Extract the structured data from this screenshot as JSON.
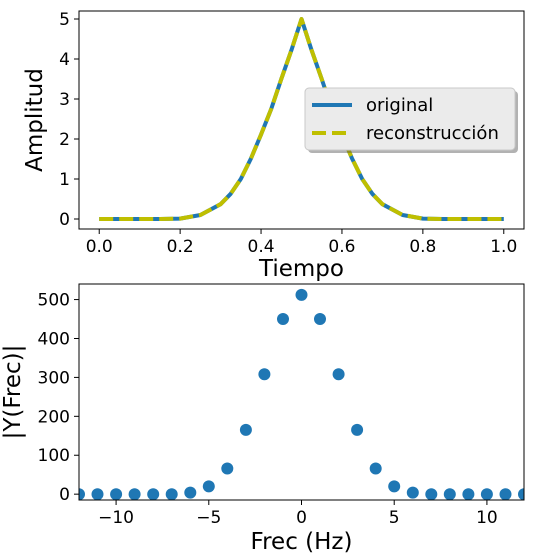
{
  "chart_data": [
    {
      "type": "line",
      "xlabel": "Tiempo",
      "ylabel": "Amplitud",
      "xlim": [
        -0.05,
        1.05
      ],
      "ylim": [
        -0.25,
        5.2
      ],
      "xticks": [
        0.0,
        0.2,
        0.4,
        0.6,
        0.8,
        1.0
      ],
      "xtick_labels": [
        "0.0",
        "0.2",
        "0.4",
        "0.6",
        "0.8",
        "1.0"
      ],
      "yticks": [
        0,
        1,
        2,
        3,
        4,
        5
      ],
      "ytick_labels": [
        "0",
        "1",
        "2",
        "3",
        "4",
        "5"
      ],
      "legend_position": "right",
      "series": [
        {
          "name": "original",
          "color": "#1f77b4",
          "style": "solid",
          "x": [
            0.0,
            0.05,
            0.1,
            0.15,
            0.2,
            0.25,
            0.3,
            0.325,
            0.35,
            0.375,
            0.4,
            0.425,
            0.45,
            0.475,
            0.5,
            0.525,
            0.55,
            0.575,
            0.6,
            0.625,
            0.65,
            0.675,
            0.7,
            0.75,
            0.8,
            0.85,
            0.9,
            0.95,
            1.0
          ],
          "y": [
            0.0,
            0.0,
            0.0,
            0.0,
            0.01,
            0.1,
            0.37,
            0.63,
            1.0,
            1.51,
            2.11,
            2.75,
            3.5,
            4.22,
            5.0,
            4.22,
            3.5,
            2.75,
            2.11,
            1.51,
            1.0,
            0.63,
            0.37,
            0.1,
            0.01,
            0.0,
            0.0,
            0.0,
            0.0
          ]
        },
        {
          "name": "reconstrucción",
          "color": "#bfbf00",
          "style": "dashed",
          "x": [
            0.0,
            0.05,
            0.1,
            0.15,
            0.2,
            0.25,
            0.3,
            0.325,
            0.35,
            0.375,
            0.4,
            0.425,
            0.45,
            0.475,
            0.5,
            0.525,
            0.55,
            0.575,
            0.6,
            0.625,
            0.65,
            0.675,
            0.7,
            0.75,
            0.8,
            0.85,
            0.9,
            0.95,
            1.0
          ],
          "y": [
            0.0,
            0.0,
            0.0,
            0.0,
            0.01,
            0.1,
            0.37,
            0.63,
            1.0,
            1.51,
            2.11,
            2.75,
            3.5,
            4.22,
            5.0,
            4.22,
            3.5,
            2.75,
            2.11,
            1.51,
            1.0,
            0.63,
            0.37,
            0.1,
            0.01,
            0.0,
            0.0,
            0.0,
            0.0
          ]
        }
      ]
    },
    {
      "type": "scatter",
      "xlabel": "Frec (Hz)",
      "ylabel": "|Y(Frec)|",
      "xlim": [
        -12,
        12
      ],
      "ylim": [
        -15,
        540
      ],
      "xticks": [
        -10,
        -5,
        0,
        5,
        10
      ],
      "xtick_labels": [
        "−10",
        "−5",
        "0",
        "5",
        "10"
      ],
      "yticks": [
        0,
        100,
        200,
        300,
        400,
        500
      ],
      "ytick_labels": [
        "0",
        "100",
        "200",
        "300",
        "400",
        "500"
      ],
      "series": [
        {
          "color": "#1f77b4",
          "x": [
            -12,
            -11,
            -10,
            -9,
            -8,
            -7,
            -6,
            -5,
            -4,
            -3,
            -2,
            -1,
            0,
            1,
            2,
            3,
            4,
            5,
            6,
            7,
            8,
            9,
            10,
            11,
            12
          ],
          "y": [
            0,
            0,
            0,
            0,
            0,
            0,
            4,
            20,
            66,
            165,
            308,
            450,
            512,
            450,
            308,
            165,
            66,
            20,
            4,
            0,
            0,
            0,
            0,
            0,
            0
          ]
        }
      ]
    }
  ]
}
